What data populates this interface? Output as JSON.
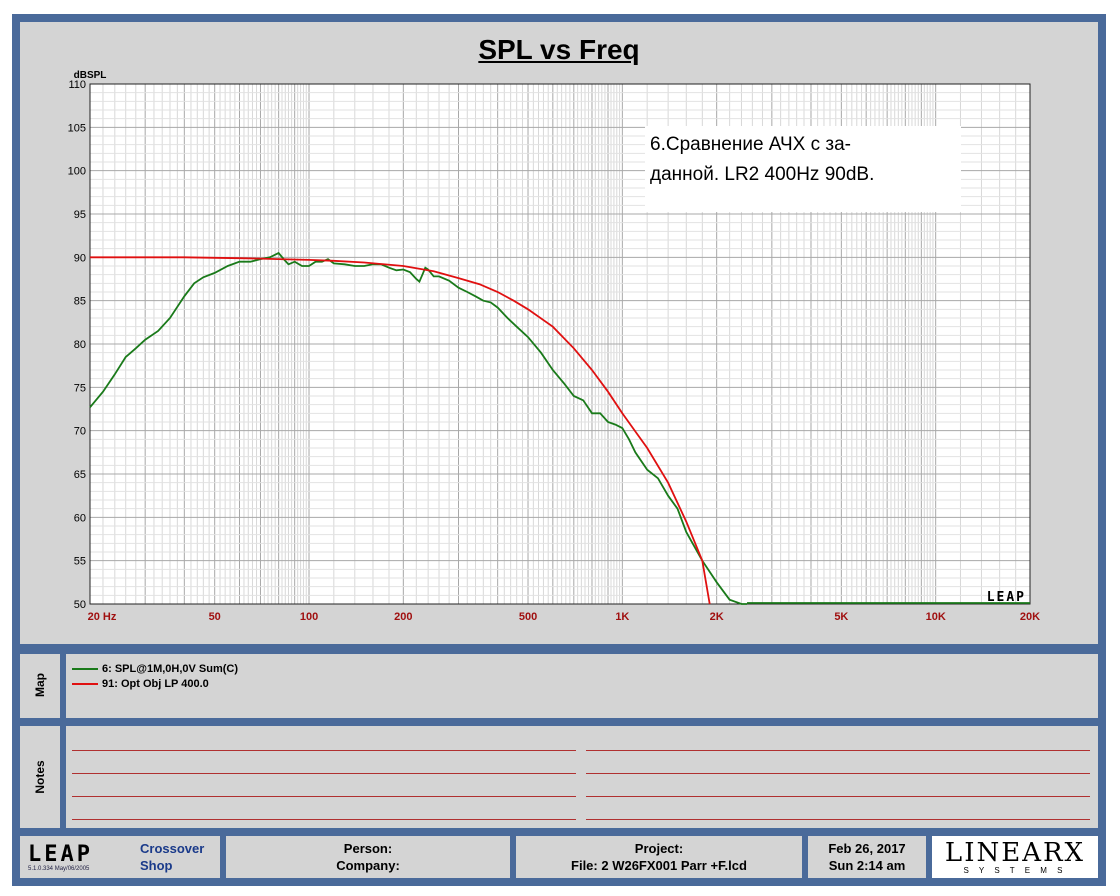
{
  "chart_data": {
    "type": "line",
    "title": "SPL vs Freq",
    "ylabel": "dBSPL",
    "xlabel": "",
    "xscale": "log",
    "xlim": [
      20,
      20000
    ],
    "ylim": [
      50,
      110
    ],
    "grid": true,
    "yticks": [
      "110",
      "105",
      "100",
      "95",
      "90",
      "85",
      "80",
      "75",
      "70",
      "65",
      "60",
      "55",
      "50"
    ],
    "xticks": [
      {
        "v": 20,
        "label": "20 Hz"
      },
      {
        "v": 50,
        "label": "50"
      },
      {
        "v": 100,
        "label": "100"
      },
      {
        "v": 200,
        "label": "200"
      },
      {
        "v": 500,
        "label": "500"
      },
      {
        "v": 1000,
        "label": "1K"
      },
      {
        "v": 2000,
        "label": "2K"
      },
      {
        "v": 5000,
        "label": "5K"
      },
      {
        "v": 10000,
        "label": "10K"
      },
      {
        "v": 20000,
        "label": "20K"
      }
    ],
    "annotation": [
      "6.Сравнение АЧХ  с за-",
      "данной.  LR2 400Hz 90dB."
    ],
    "watermark": "LEAP",
    "series": [
      {
        "name": "6: SPL@1M,0H,0V Sum(C)",
        "color": "#1a7a1a",
        "x": [
          20,
          22,
          24,
          26,
          28,
          30,
          33,
          36,
          40,
          43,
          46,
          50,
          55,
          60,
          65,
          70,
          75,
          80,
          83,
          86,
          90,
          95,
          100,
          105,
          110,
          115,
          120,
          130,
          140,
          150,
          160,
          170,
          180,
          190,
          200,
          210,
          220,
          225,
          230,
          235,
          240,
          245,
          250,
          260,
          280,
          300,
          320,
          340,
          360,
          380,
          400,
          430,
          460,
          500,
          550,
          600,
          650,
          700,
          750,
          800,
          850,
          900,
          950,
          1000,
          1050,
          1100,
          1200,
          1300,
          1400,
          1500,
          1600,
          1800,
          2000,
          2200,
          2400,
          2500
        ],
        "y": [
          72.7,
          74.5,
          76.5,
          78.5,
          79.5,
          80.5,
          81.5,
          83,
          85.5,
          87,
          87.7,
          88.2,
          89,
          89.5,
          89.5,
          89.8,
          90,
          90.5,
          89.8,
          89.2,
          89.5,
          89,
          89,
          89.5,
          89.5,
          89.8,
          89.3,
          89.2,
          89,
          89,
          89.2,
          89.2,
          88.8,
          88.5,
          88.6,
          88.3,
          87.5,
          87.2,
          88,
          88.8,
          88.6,
          88.2,
          87.8,
          87.8,
          87.3,
          86.5,
          86,
          85.5,
          85,
          84.8,
          84.2,
          83,
          82,
          80.8,
          79,
          77,
          75.5,
          74,
          73.5,
          72,
          72,
          71,
          70.7,
          70.3,
          69,
          67.5,
          65.5,
          64.5,
          62.5,
          61,
          58.3,
          55,
          52.5,
          50.5,
          50,
          50
        ]
      },
      {
        "name": "91: Opt Obj LP  400.0",
        "color": "#e01010",
        "x": [
          20,
          30,
          40,
          50,
          60,
          70,
          80,
          100,
          120,
          150,
          200,
          250,
          300,
          350,
          400,
          450,
          500,
          600,
          700,
          800,
          900,
          1000,
          1200,
          1400,
          1600,
          1800,
          1900
        ],
        "y": [
          90,
          90,
          90,
          89.95,
          89.9,
          89.85,
          89.8,
          89.7,
          89.6,
          89.4,
          89,
          88.4,
          87.6,
          86.9,
          86,
          85,
          84,
          82,
          79.5,
          77,
          74.5,
          72,
          68,
          64,
          59.5,
          55,
          50
        ]
      }
    ]
  },
  "map": {
    "label": "Map",
    "items": [
      {
        "label": "6: SPL@1M,0H,0V Sum(C)",
        "color": "#1a7a1a"
      },
      {
        "label": "91: Opt Obj LP  400.0",
        "color": "#e01010"
      }
    ]
  },
  "notes": {
    "label": "Notes"
  },
  "footer": {
    "logo": "LEAP",
    "version": "5.1.0.334  May/06/2005",
    "app_line1": "Crossover",
    "app_line2": "Shop",
    "person": "Person:",
    "company": "Company:",
    "project": "Project:",
    "file": "File: 2 W26FX001 Parr +F.lcd",
    "date": "Feb 26, 2017",
    "time": "Sun  2:14 am",
    "brand": "LINEARX",
    "brand_sub": "S Y S T E M S"
  }
}
